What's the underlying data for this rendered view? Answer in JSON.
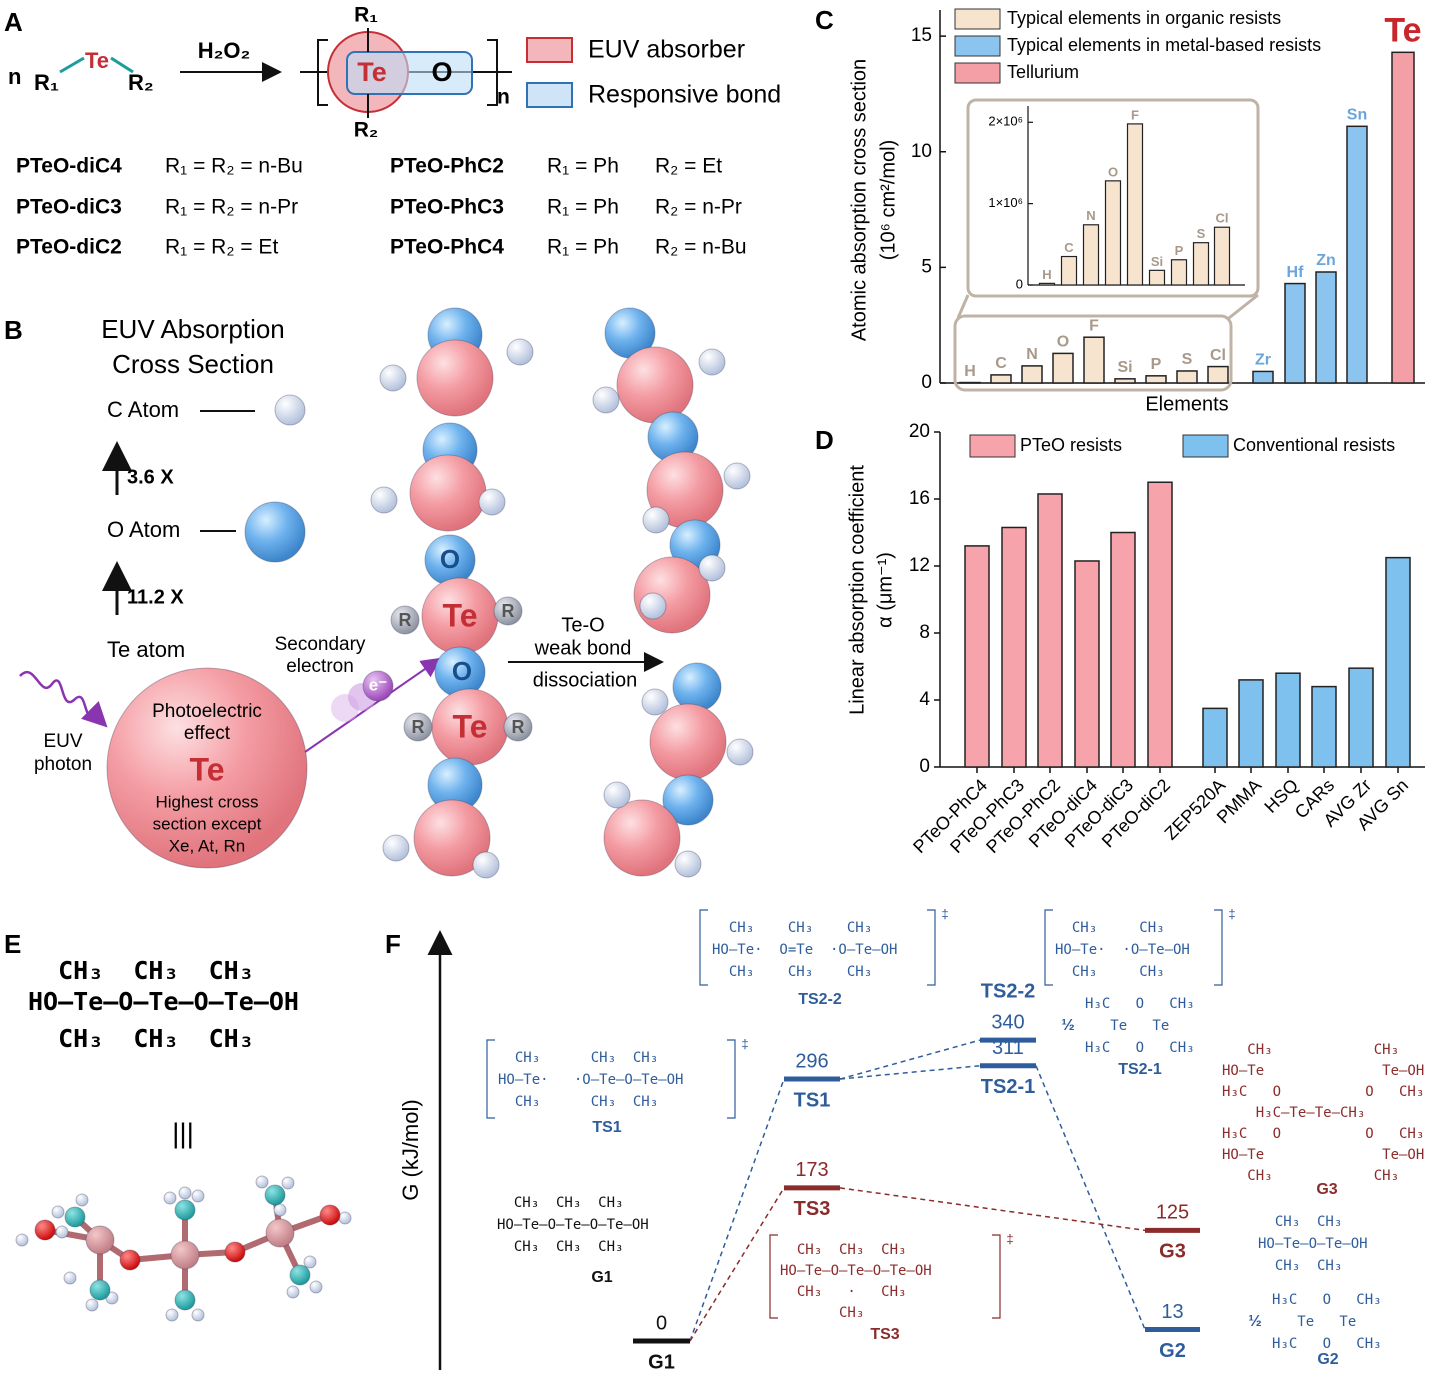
{
  "panel_labels": [
    "A",
    "B",
    "C",
    "D",
    "E",
    "F"
  ],
  "panel_a": {
    "reactant": {
      "n": "n",
      "r1": "R₁",
      "te": "Te",
      "r2": "R₂"
    },
    "reagent": "H₂O₂",
    "polymer": {
      "r1": "R₁",
      "te": "Te",
      "o": "O",
      "r2": "R₂",
      "n": "n"
    },
    "legend": [
      "EUV absorber",
      "Responsive bond"
    ],
    "left_rows": [
      {
        "name": "PTeO-diC4",
        "formula": "R₁ = R₂ = n-Bu"
      },
      {
        "name": "PTeO-diC3",
        "formula": "R₁ = R₂ = n-Pr"
      },
      {
        "name": "PTeO-diC2",
        "formula": "R₁ = R₂ = Et"
      }
    ],
    "right_rows": [
      {
        "name": "PTeO-PhC2",
        "r1": "R₁ = Ph",
        "r2": "R₂ = Et"
      },
      {
        "name": "PTeO-PhC3",
        "r1": "R₁ = Ph",
        "r2": "R₂ = n-Pr"
      },
      {
        "name": "PTeO-PhC4",
        "r1": "R₁ = Ph",
        "r2": "R₂ = n-Bu"
      }
    ]
  },
  "panel_b": {
    "title": [
      "EUV Absorption",
      "Cross Section"
    ],
    "c_atom": "C Atom",
    "ratio_co": "3.6 X",
    "o_atom": "O Atom",
    "ratio_ote": "11.2 X",
    "te_atom": "Te atom",
    "secondary": [
      "Secondary",
      "electron"
    ],
    "electron": "e⁻",
    "photon": [
      "EUV",
      "photon"
    ],
    "te_sphere": [
      "Photoelectric",
      "effect",
      "Te",
      "Highest cross",
      "section except",
      "Xe, At, Rn"
    ],
    "chain_o": [
      "O",
      "O"
    ],
    "chain_te": [
      "Te",
      "Te"
    ],
    "chain_r": [
      "R",
      "R",
      "R",
      "R"
    ],
    "arrow": [
      "Te-O",
      "weak bond",
      "dissociation"
    ]
  },
  "chart_data": [
    {
      "type": "bar",
      "ylabel": [
        "Atomic absorption cross section",
        "(10⁶ cm²/mol)"
      ],
      "xlabel": "Elements",
      "categories": [
        "H",
        "C",
        "N",
        "O",
        "F",
        "Si",
        "P",
        "S",
        "Cl",
        "Zr",
        "Hf",
        "Zn",
        "Sn",
        "Te"
      ],
      "series": [
        {
          "name": "Typical elements in organic resists",
          "color": "#f6e4cf",
          "values": [
            0.02,
            0.35,
            0.74,
            1.28,
            1.98,
            0.18,
            0.31,
            0.52,
            0.71,
            null,
            null,
            null,
            null,
            null
          ]
        },
        {
          "name": "Typical elements in metal-based resists",
          "color": "#8cc4f0",
          "values": [
            null,
            null,
            null,
            null,
            null,
            null,
            null,
            null,
            null,
            0.5,
            4.3,
            4.8,
            11.1,
            null
          ]
        },
        {
          "name": "Tellurium",
          "color": "#f49ea6",
          "values": [
            null,
            null,
            null,
            null,
            null,
            null,
            null,
            null,
            null,
            null,
            null,
            null,
            null,
            14.3
          ]
        }
      ],
      "ylim": [
        0,
        16
      ],
      "yticks": [
        0,
        5,
        10,
        15
      ],
      "inset": {
        "type": "bar",
        "categories": [
          "H",
          "C",
          "N",
          "O",
          "F",
          "Si",
          "P",
          "S",
          "Cl"
        ],
        "color": "#f6e4cf",
        "values": [
          20000,
          350000,
          740000,
          1280000,
          1980000,
          180000,
          310000,
          520000,
          710000
        ],
        "ylim": [
          0,
          2200000
        ],
        "yticks": [
          0,
          {
            "value": 1000000,
            "label": "1×10⁶"
          },
          {
            "value": 2000000,
            "label": "2×10⁶"
          }
        ]
      }
    },
    {
      "type": "bar",
      "ylabel": [
        "Linear absorption coefficient",
        "α (μm⁻¹)"
      ],
      "categories": [
        "PTeO-PhC4",
        "PTeO-PhC3",
        "PTeO-PhC2",
        "PTeO-diC4",
        "PTeO-diC3",
        "PTeO-diC2",
        "ZEP520A",
        "PMMA",
        "HSQ",
        "CARs",
        "AVG Zr",
        "AVG Sn"
      ],
      "series": [
        {
          "name": "PTeO resists",
          "color": "#f7a3ab",
          "values": [
            13.2,
            14.3,
            16.3,
            12.3,
            14.0,
            17.0,
            null,
            null,
            null,
            null,
            null,
            null
          ]
        },
        {
          "name": "Conventional resists",
          "color": "#7ec0ee",
          "values": [
            null,
            null,
            null,
            null,
            null,
            null,
            3.5,
            5.2,
            5.6,
            4.8,
            5.9,
            12.5
          ]
        }
      ],
      "ylim": [
        0,
        20
      ],
      "yticks": [
        0,
        4,
        8,
        12,
        16,
        20
      ]
    }
  ],
  "panel_e": {
    "lines": [
      "  CH₃  CH₃  CH₃",
      "HO–Te–O–Te–O–Te–OH",
      "  CH₃  CH₃  CH₃"
    ],
    "equiv": "|||"
  },
  "panel_f": {
    "ylabel": "G (kJ/mol)",
    "levels": [
      {
        "name": "G1",
        "value": 0,
        "color": "#111111"
      },
      {
        "name": "TS1",
        "value": 296,
        "color": "#2f5d9b"
      },
      {
        "name": "TS2-2",
        "value": 340,
        "color": "#2f5d9b"
      },
      {
        "name": "TS2-1",
        "value": 311,
        "color": "#2f5d9b"
      },
      {
        "name": "TS3",
        "value": 173,
        "color": "#8b2b2b"
      },
      {
        "name": "G3",
        "value": 125,
        "color": "#8b2b2b"
      },
      {
        "name": "G2",
        "value": 13,
        "color": "#2f5d9b"
      }
    ],
    "structures": [
      {
        "lines": [
          "  CH₃    CH₃    CH₃",
          "HO–Te·  O=Te  ·O–Te–OH",
          "  CH₃    CH₃    CH₃"
        ],
        "caption": "TS2-2",
        "mark": "‡"
      },
      {
        "lines": [
          "  CH₃     CH₃",
          "HO–Te·  ·O–Te–OH",
          "  CH₃     CH₃"
        ],
        "mark": "‡"
      },
      {
        "prefix": "½",
        "lines": [
          "H₃C   O   CH₃",
          "   Te   Te",
          "H₃C   O   CH₃"
        ],
        "caption": "TS2-1"
      },
      {
        "lines": [
          "  CH₃      CH₃  CH₃",
          "HO–Te·   ·O–Te–O–Te–OH",
          "  CH₃      CH₃  CH₃"
        ],
        "caption": "TS1",
        "mark": "‡"
      },
      {
        "lines": [
          "   CH₃            CH₃",
          "HO–Te              Te–OH",
          "H₃C   O          O   CH₃",
          "    H₃C–Te–Te–CH₃",
          "H₃C   O          O   CH₃",
          "HO–Te              Te–OH",
          "   CH₃            CH₃"
        ],
        "caption": "G3"
      },
      {
        "lines": [
          "  CH₃  CH₃  CH₃",
          "HO–Te–O–Te–O–Te–OH",
          "  CH₃  CH₃  CH₃"
        ],
        "caption": "G1"
      },
      {
        "lines": [
          "  CH₃  CH₃",
          "HO–Te–O–Te–OH",
          "  CH₃  CH₃"
        ]
      },
      {
        "prefix": "½",
        "lines": [
          "H₃C   O   CH₃",
          "   Te   Te",
          "H₃C   O   CH₃"
        ],
        "caption": "G2"
      },
      {
        "lines": [
          "  CH₃  CH₃  CH₃",
          "HO–Te–O–Te–O–Te–OH",
          "  CH₃   ·   CH₃",
          "       CH₃"
        ],
        "caption": "TS3",
        "mark": "‡"
      }
    ]
  }
}
